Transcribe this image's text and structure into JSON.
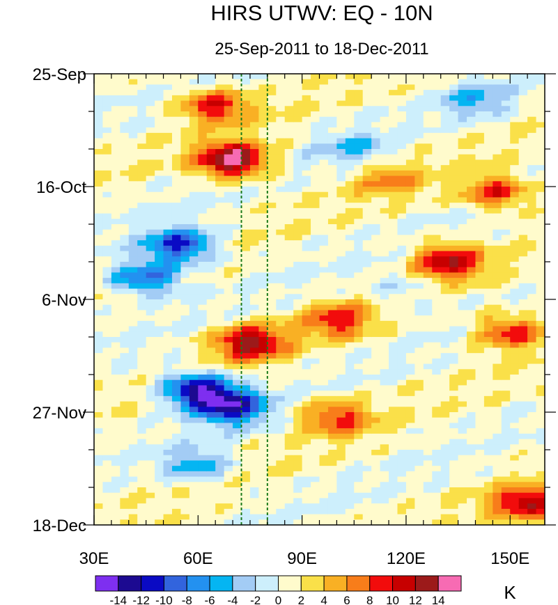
{
  "chart_data": {
    "type": "heatmap",
    "title": "HIRS UTWV: EQ - 10N",
    "subtitle": "25-Sep-2011 to 18-Dec-2011",
    "xlabel": "",
    "ylabel": "",
    "units": "K",
    "xlim": [
      30,
      160
    ],
    "ylim_days": [
      0,
      84
    ],
    "x_ticks": [
      {
        "value": 30,
        "label": "30E"
      },
      {
        "value": 60,
        "label": "60E"
      },
      {
        "value": 90,
        "label": "90E"
      },
      {
        "value": 120,
        "label": "120E"
      },
      {
        "value": 150,
        "label": "150E"
      }
    ],
    "y_ticks": [
      {
        "value": 0,
        "label": "25-Sep"
      },
      {
        "value": 21,
        "label": "16-Oct"
      },
      {
        "value": 42,
        "label": "6-Nov"
      },
      {
        "value": 63,
        "label": "27-Nov"
      },
      {
        "value": 84,
        "label": "18-Dec"
      }
    ],
    "reference_lines_lon": [
      72.5,
      80
    ],
    "colorbar": {
      "colors": [
        "#7e2ff0",
        "#1c0a91",
        "#0a0ac4",
        "#3264dd",
        "#2391f0",
        "#05b5f2",
        "#a3ccf5",
        "#cdeffc",
        "#fffbcc",
        "#fae049",
        "#f9b024",
        "#f87d1a",
        "#f20c0c",
        "#c70000",
        "#9c1a1a",
        "#f76bb3"
      ],
      "labels": [
        "-14",
        "-12",
        "-10",
        "-8",
        "-6",
        "-4",
        "-2",
        "0",
        "2",
        "4",
        "6",
        "8",
        "10",
        "12",
        "14"
      ]
    },
    "anomaly_features": [
      {
        "lon": 65,
        "day": 6,
        "value": 9
      },
      {
        "lon": 70,
        "day": 16,
        "value": 15
      },
      {
        "lon": 115,
        "day": 20,
        "value": 5
      },
      {
        "lon": 146,
        "day": 22,
        "value": 9
      },
      {
        "lon": 132,
        "day": 35,
        "value": 11
      },
      {
        "lon": 55,
        "day": 32,
        "value": -12
      },
      {
        "lon": 45,
        "day": 38,
        "value": -10
      },
      {
        "lon": 75,
        "day": 50,
        "value": 12
      },
      {
        "lon": 100,
        "day": 46,
        "value": 8
      },
      {
        "lon": 150,
        "day": 48,
        "value": 9
      },
      {
        "lon": 60,
        "day": 59,
        "value": -14
      },
      {
        "lon": 70,
        "day": 62,
        "value": -12
      },
      {
        "lon": 100,
        "day": 64,
        "value": 8
      },
      {
        "lon": 155,
        "day": 80,
        "value": 11
      },
      {
        "lon": 60,
        "day": 73,
        "value": -6
      },
      {
        "lon": 105,
        "day": 14,
        "value": -4
      },
      {
        "lon": 120,
        "day": 40,
        "value": -3
      },
      {
        "lon": 140,
        "day": 5,
        "value": -5
      }
    ]
  }
}
